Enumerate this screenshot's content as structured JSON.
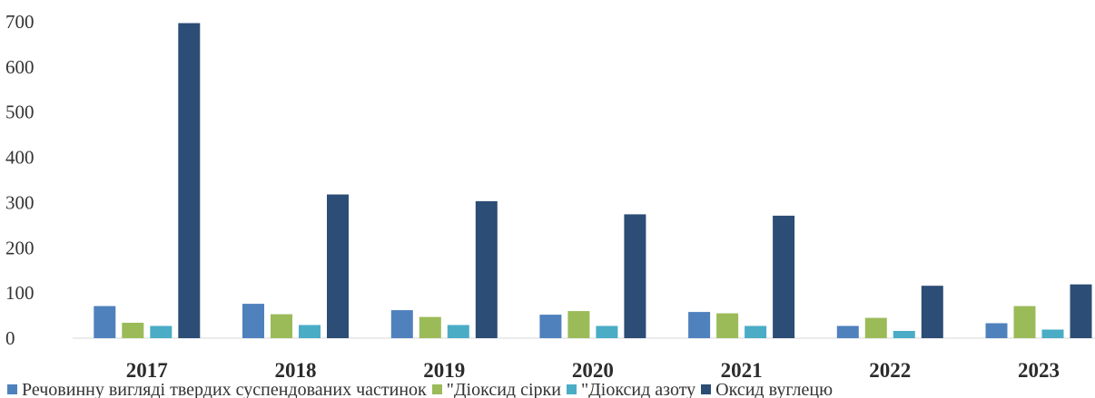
{
  "chart_data": {
    "type": "bar",
    "title": "",
    "xlabel": "",
    "ylabel": "",
    "ylim": [
      0,
      700
    ],
    "yticks": [
      0,
      100,
      200,
      300,
      400,
      500,
      600,
      700
    ],
    "grid": false,
    "legend_position": "bottom",
    "categories": [
      "2017",
      "2018",
      "2019",
      "2020",
      "2021",
      "2022",
      "2023"
    ],
    "series": [
      {
        "name": "Речовинну вигляді твердих суспендованих частинок",
        "color": "#4f81bd",
        "values": [
          71,
          76,
          62,
          52,
          58,
          27,
          33
        ]
      },
      {
        "name": "\"Діоксид сірки",
        "color": "#9bbb59",
        "values": [
          34,
          53,
          47,
          60,
          55,
          45,
          71
        ]
      },
      {
        "name": "\"Діоксид азоту",
        "color": "#4bacc6",
        "values": [
          27,
          29,
          29,
          27,
          27,
          16,
          19
        ]
      },
      {
        "name": "Оксид вуглецю",
        "color": "#2c4d75",
        "values": [
          697,
          318,
          303,
          274,
          271,
          116,
          119
        ]
      }
    ]
  }
}
